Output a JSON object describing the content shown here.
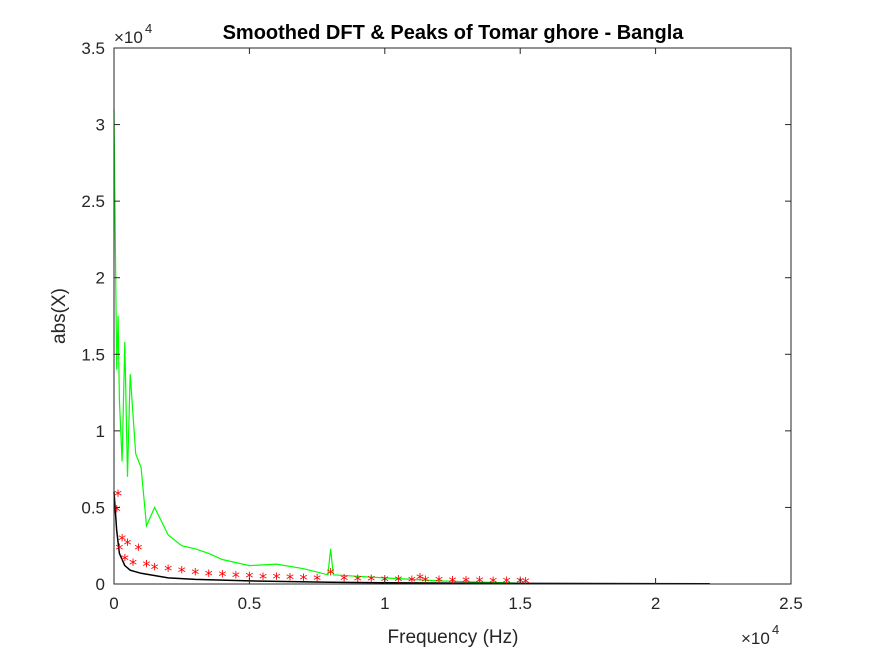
{
  "chart_data": {
    "type": "line",
    "title": "Smoothed DFT & Peaks of Tomar ghore - Bangla",
    "xlabel": "Frequency (Hz)",
    "ylabel": "abs(X)",
    "x_exponent_label": "×10",
    "x_exponent_power": "4",
    "y_exponent_label": "×10",
    "y_exponent_power": "4",
    "xlim": [
      0,
      25000
    ],
    "ylim": [
      0,
      35000
    ],
    "x_ticks": [
      0,
      5000,
      10000,
      15000,
      20000,
      25000
    ],
    "x_tick_labels": [
      "0",
      "0.5",
      "1",
      "1.5",
      "2",
      "2.5"
    ],
    "y_ticks": [
      0,
      5000,
      10000,
      15000,
      20000,
      25000,
      30000,
      35000
    ],
    "y_tick_labels": [
      "0",
      "0.5",
      "1",
      "1.5",
      "2",
      "2.5",
      "3",
      "3.5"
    ],
    "grid": false,
    "series": [
      {
        "role": "dft",
        "color": "#00ff00",
        "x": [
          0,
          50,
          100,
          150,
          200,
          300,
          400,
          500,
          600,
          800,
          1000,
          1200,
          1500,
          2000,
          2500,
          3000,
          3500,
          4000,
          5000,
          6000,
          7000,
          7900,
          8000,
          8100,
          9000,
          10000,
          11000,
          12000,
          13000,
          14000,
          15000
        ],
        "values": [
          31000,
          22000,
          14000,
          17500,
          12000,
          8000,
          15800,
          7000,
          13700,
          8500,
          7600,
          3800,
          5000,
          3200,
          2500,
          2300,
          2000,
          1600,
          1200,
          1300,
          1000,
          600,
          2300,
          600,
          500,
          400,
          300,
          200,
          150,
          100,
          50
        ]
      },
      {
        "role": "smoothed",
        "color": "#000000",
        "x": [
          0,
          100,
          200,
          400,
          600,
          1000,
          2000,
          3000,
          5000,
          8000,
          10000,
          15000,
          22000
        ],
        "values": [
          6000,
          3500,
          2000,
          1200,
          900,
          700,
          400,
          300,
          200,
          120,
          80,
          40,
          10
        ]
      },
      {
        "role": "peaks",
        "color": "#ff0000",
        "marker": "*",
        "x": [
          150,
          100,
          200,
          300,
          500,
          900,
          400,
          700,
          1200,
          1500,
          2000,
          2500,
          3000,
          3500,
          4000,
          4500,
          5000,
          5500,
          6000,
          6500,
          7000,
          7500,
          8000,
          8500,
          9000,
          9500,
          10000,
          10500,
          11000,
          11300,
          11500,
          12000,
          12500,
          13000,
          13500,
          14000,
          14500,
          15000,
          15200
        ],
        "values": [
          5800,
          4800,
          2300,
          2900,
          2600,
          2300,
          1600,
          1300,
          1200,
          1000,
          900,
          800,
          700,
          600,
          550,
          500,
          450,
          400,
          380,
          350,
          330,
          300,
          700,
          280,
          260,
          250,
          230,
          220,
          200,
          350,
          190,
          180,
          170,
          160,
          150,
          140,
          130,
          120,
          100
        ]
      }
    ]
  }
}
